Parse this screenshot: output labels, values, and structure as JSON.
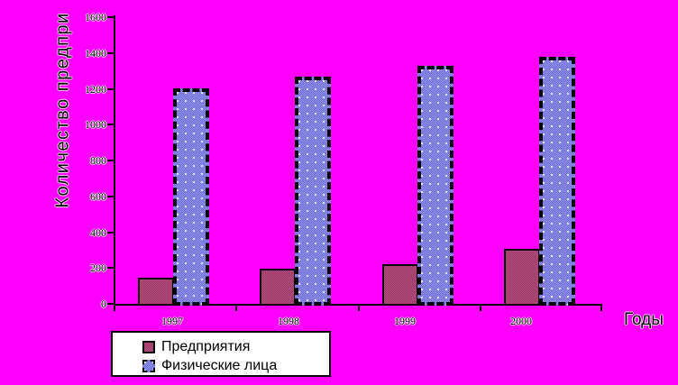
{
  "chart_data": {
    "type": "bar",
    "title": "",
    "categories": [
      "1997",
      "1998",
      "1999",
      "2000"
    ],
    "series": [
      {
        "name": "Предприятия",
        "values": [
          145,
          195,
          220,
          305
        ],
        "color": "#993366",
        "fill_pattern": "checker",
        "border_style": "solid"
      },
      {
        "name": "Физические лица",
        "values": [
          1200,
          1270,
          1330,
          1380
        ],
        "color": "#8080e0",
        "fill_pattern": "checker-with-white-dots",
        "border_style": "dashed"
      }
    ],
    "xlabel": "Годы",
    "ylabel": "Количество предпри",
    "ylim": [
      0,
      1600
    ],
    "y_tick_step": 200,
    "y_tick_labels": [
      "0",
      "200",
      "400",
      "600",
      "800",
      "1000",
      "1200",
      "1400",
      "1600"
    ],
    "grid": false,
    "legend_position": "bottom-left",
    "colors": {
      "background": "#ff00ff",
      "axis": "#000000",
      "legend_background": "#ffffff"
    }
  }
}
